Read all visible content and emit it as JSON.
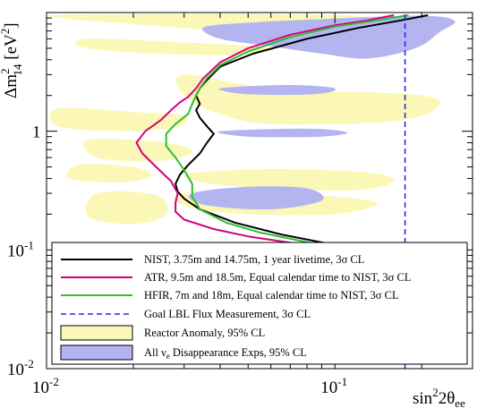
{
  "chart_data": {
    "type": "line",
    "title": "",
    "xlabel": {
      "base": "sin",
      "sup": "2",
      "rest": "2θ",
      "sub": "ee"
    },
    "ylabel": {
      "base": "Δm",
      "sup": "2",
      "sub": "14",
      "rest": " [eV",
      "sup2": "2",
      "end": "]"
    },
    "x_scale": "log",
    "y_scale": "log",
    "xlim": [
      0.01,
      0.3
    ],
    "ylim": [
      0.01,
      10
    ],
    "x_ticks": [
      {
        "value": 0.01,
        "base": "10",
        "exp": "-2"
      },
      {
        "value": 0.1,
        "base": "10",
        "exp": "-1"
      }
    ],
    "y_ticks": [
      {
        "value": 0.01,
        "base": "10",
        "exp": "-2"
      },
      {
        "value": 0.1,
        "base": "10",
        "exp": "-1"
      },
      {
        "value": 1,
        "base": "1",
        "exp": ""
      }
    ],
    "regions": [
      {
        "name": "reactor-anomaly",
        "legend": "Reactor Anomaly, 95% CL",
        "color": "#fbf7b6",
        "blobs": [
          [
            [
              0.012,
              9.6
            ],
            [
              0.09,
              9.6
            ],
            [
              0.14,
              8.5
            ],
            [
              0.16,
              7.0
            ],
            [
              0.11,
              6.2
            ],
            [
              0.07,
              6.6
            ],
            [
              0.035,
              7.2
            ],
            [
              0.02,
              8.0
            ],
            [
              0.012,
              8.8
            ]
          ],
          [
            [
              0.014,
              6.0
            ],
            [
              0.03,
              5.6
            ],
            [
              0.06,
              5.0
            ],
            [
              0.045,
              4.4
            ],
            [
              0.02,
              4.6
            ],
            [
              0.013,
              5.2
            ]
          ],
          [
            [
              0.03,
              3.0
            ],
            [
              0.06,
              2.3
            ],
            [
              0.2,
              2.0
            ],
            [
              0.22,
              1.5
            ],
            [
              0.15,
              1.2
            ],
            [
              0.06,
              1.15
            ],
            [
              0.04,
              1.4
            ],
            [
              0.03,
              2.0
            ]
          ],
          [
            [
              0.011,
              1.55
            ],
            [
              0.02,
              1.45
            ],
            [
              0.03,
              1.35
            ],
            [
              0.028,
              1.08
            ],
            [
              0.018,
              1.0
            ],
            [
              0.011,
              1.1
            ]
          ],
          [
            [
              0.014,
              0.85
            ],
            [
              0.026,
              0.8
            ],
            [
              0.032,
              0.66
            ],
            [
              0.024,
              0.56
            ],
            [
              0.015,
              0.6
            ]
          ],
          [
            [
              0.013,
              0.52
            ],
            [
              0.02,
              0.5
            ],
            [
              0.023,
              0.42
            ],
            [
              0.018,
              0.37
            ],
            [
              0.012,
              0.4
            ]
          ],
          [
            [
              0.031,
              0.44
            ],
            [
              0.06,
              0.48
            ],
            [
              0.13,
              0.45
            ],
            [
              0.16,
              0.38
            ],
            [
              0.12,
              0.32
            ],
            [
              0.06,
              0.33
            ],
            [
              0.035,
              0.37
            ]
          ],
          [
            [
              0.03,
              0.3
            ],
            [
              0.08,
              0.29
            ],
            [
              0.14,
              0.25
            ],
            [
              0.1,
              0.2
            ],
            [
              0.05,
              0.2
            ],
            [
              0.031,
              0.23
            ]
          ],
          [
            [
              0.015,
              0.3
            ],
            [
              0.024,
              0.29
            ],
            [
              0.026,
              0.2
            ],
            [
              0.02,
              0.165
            ],
            [
              0.014,
              0.19
            ]
          ]
        ]
      },
      {
        "name": "all-nue-disappearance",
        "legend_main": "All ν",
        "legend_sub": "e",
        "legend_rest": " Disappearance Exps, 95% CL",
        "color": "#b4b4f1",
        "blobs": [
          [
            [
              0.035,
              7.5
            ],
            [
              0.05,
              8.2
            ],
            [
              0.09,
              8.8
            ],
            [
              0.2,
              9.4
            ],
            [
              0.26,
              8.5
            ],
            [
              0.23,
              6.8
            ],
            [
              0.19,
              5.0
            ],
            [
              0.13,
              4.1
            ],
            [
              0.09,
              4.5
            ],
            [
              0.06,
              5.2
            ],
            [
              0.04,
              6.0
            ]
          ],
          [
            [
              0.04,
              2.3
            ],
            [
              0.07,
              2.45
            ],
            [
              0.1,
              2.3
            ],
            [
              0.085,
              2.05
            ],
            [
              0.05,
              2.05
            ]
          ],
          [
            [
              0.04,
              1.0
            ],
            [
              0.08,
              1.05
            ],
            [
              0.11,
              0.98
            ],
            [
              0.09,
              0.9
            ],
            [
              0.05,
              0.9
            ]
          ],
          [
            [
              0.032,
              0.3
            ],
            [
              0.05,
              0.34
            ],
            [
              0.08,
              0.33
            ],
            [
              0.09,
              0.26
            ],
            [
              0.06,
              0.22
            ],
            [
              0.035,
              0.24
            ]
          ]
        ]
      }
    ],
    "series": [
      {
        "name": "NIST, 3.75m and 14.75m, 1 year livetime, 3σ CL",
        "color": "#000000",
        "dashed": false,
        "x": [
          0.21,
          0.17,
          0.12,
          0.08,
          0.052,
          0.04,
          0.036,
          0.034,
          0.033,
          0.034,
          0.033,
          0.034,
          0.036,
          0.038,
          0.036,
          0.034,
          0.031,
          0.029,
          0.028,
          0.0285,
          0.03,
          0.034,
          0.045,
          0.065,
          0.1,
          0.14
        ],
        "y": [
          9.5,
          8.6,
          7.4,
          6.0,
          4.5,
          3.5,
          2.7,
          2.3,
          2.0,
          1.7,
          1.5,
          1.3,
          1.1,
          0.95,
          0.8,
          0.65,
          0.52,
          0.43,
          0.36,
          0.31,
          0.27,
          0.22,
          0.17,
          0.135,
          0.11,
          0.098
        ]
      },
      {
        "name": "ATR, 9.5m and 18.5m, Equal calendar time to NIST, 3σ CL",
        "color": "#d6007e",
        "dashed": false,
        "x": [
          0.16,
          0.13,
          0.1,
          0.07,
          0.05,
          0.04,
          0.035,
          0.033,
          0.031,
          0.029,
          0.027,
          0.025,
          0.022,
          0.0205,
          0.0215,
          0.024,
          0.027,
          0.0285,
          0.028,
          0.028,
          0.03,
          0.038,
          0.05,
          0.07,
          0.1,
          0.13
        ],
        "y": [
          9.5,
          8.6,
          7.8,
          6.5,
          5.0,
          3.8,
          2.8,
          2.3,
          1.95,
          1.75,
          1.5,
          1.25,
          1.0,
          0.8,
          0.65,
          0.5,
          0.38,
          0.3,
          0.25,
          0.21,
          0.18,
          0.15,
          0.13,
          0.115,
          0.1,
          0.092
        ]
      },
      {
        "name": "HFIR, 7m and 18m, Equal calendar time to NIST, 3σ CL",
        "color": "#2fbf2f",
        "dashed": false,
        "x": [
          0.18,
          0.14,
          0.1,
          0.07,
          0.05,
          0.04,
          0.036,
          0.034,
          0.033,
          0.032,
          0.031,
          0.028,
          0.026,
          0.026,
          0.028,
          0.03,
          0.032,
          0.032,
          0.034,
          0.042,
          0.055,
          0.075,
          0.1,
          0.13
        ],
        "y": [
          9.5,
          8.6,
          7.6,
          6.2,
          4.7,
          3.6,
          2.8,
          2.3,
          2.0,
          1.7,
          1.4,
          1.15,
          0.95,
          0.75,
          0.6,
          0.47,
          0.36,
          0.28,
          0.22,
          0.17,
          0.14,
          0.12,
          0.105,
          0.095
        ]
      },
      {
        "name": "Goal LBL Flux Measurement, 3σ CL",
        "color": "#2a2ad8",
        "dashed": true,
        "x": [
          0.175,
          0.175
        ],
        "y": [
          0.01,
          10
        ]
      }
    ],
    "legend": {
      "position": "bottom-left"
    }
  }
}
